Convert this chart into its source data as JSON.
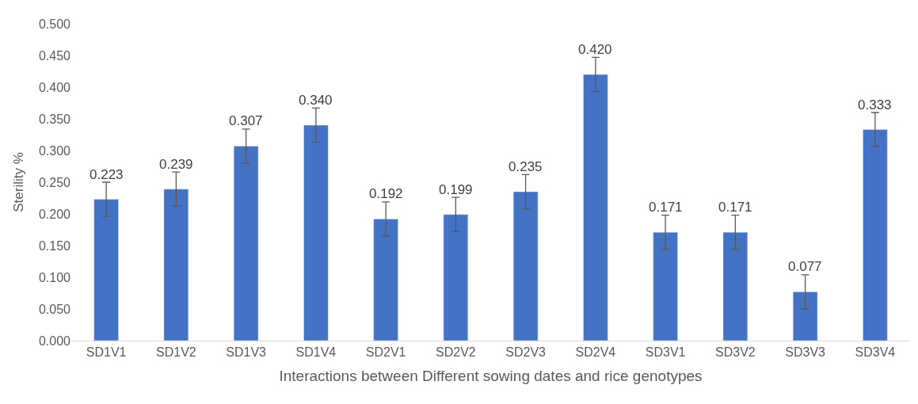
{
  "chart_data": {
    "type": "bar",
    "xlabel": "Interactions between Different sowing dates and rice genotypes",
    "ylabel": "Sterility %",
    "categories": [
      "SD1V1",
      "SD1V2",
      "SD1V3",
      "SD1V4",
      "SD2V1",
      "SD2V2",
      "SD2V3",
      "SD2V4",
      "SD3V1",
      "SD3V2",
      "SD3V3",
      "SD3V4"
    ],
    "values": [
      0.223,
      0.239,
      0.307,
      0.34,
      0.192,
      0.199,
      0.235,
      0.42,
      0.171,
      0.171,
      0.077,
      0.333
    ],
    "value_labels": [
      "0.223",
      "0.239",
      "0.307",
      "0.340",
      "0.192",
      "0.199",
      "0.235",
      "0.420",
      "0.171",
      "0.171",
      "0.077",
      "0.333"
    ],
    "errors": [
      0.027,
      0.027,
      0.027,
      0.027,
      0.027,
      0.027,
      0.027,
      0.027,
      0.027,
      0.027,
      0.027,
      0.027
    ],
    "color": "#4472c4",
    "ylim": [
      0,
      0.5
    ],
    "yticks": [
      {
        "value": 0,
        "label": "0.000"
      },
      {
        "value": 0.05,
        "label": "0.050"
      },
      {
        "value": 0.1,
        "label": "0.100"
      },
      {
        "value": 0.15,
        "label": "0.150"
      },
      {
        "value": 0.2,
        "label": "0.200"
      },
      {
        "value": 0.25,
        "label": "0.250"
      },
      {
        "value": 0.3,
        "label": "0.300"
      },
      {
        "value": 0.35,
        "label": "0.350"
      },
      {
        "value": 0.4,
        "label": "0.400"
      },
      {
        "value": 0.45,
        "label": "0.450"
      },
      {
        "value": 0.5,
        "label": "0.500"
      }
    ],
    "grid": false,
    "legend": false
  }
}
